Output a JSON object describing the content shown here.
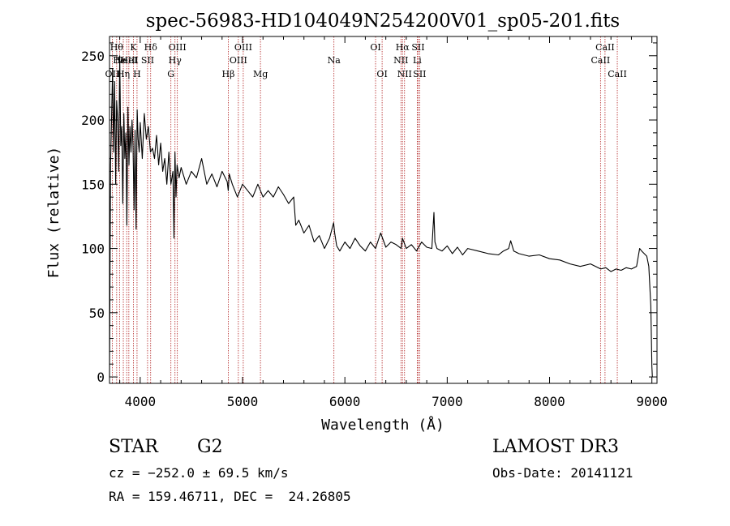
{
  "chart_data": {
    "type": "line",
    "title": "spec-56983-HD104049N254200V01_sp05-201.fits",
    "xlabel": "Wavelength (Å)",
    "ylabel": "Flux (relative)",
    "xlim": [
      3700,
      9050
    ],
    "ylim": [
      -5,
      265
    ],
    "xticks": [
      4000,
      5000,
      6000,
      7000,
      8000,
      9000
    ],
    "yticks": [
      0,
      50,
      100,
      150,
      200,
      250
    ],
    "series": [
      {
        "name": "flux",
        "x": [
          3700,
          3710,
          3720,
          3730,
          3740,
          3750,
          3760,
          3770,
          3780,
          3790,
          3800,
          3810,
          3820,
          3830,
          3840,
          3850,
          3860,
          3870,
          3880,
          3890,
          3900,
          3910,
          3920,
          3930,
          3940,
          3950,
          3960,
          3970,
          3980,
          3990,
          4000,
          4020,
          4040,
          4060,
          4080,
          4100,
          4120,
          4140,
          4160,
          4180,
          4200,
          4220,
          4240,
          4260,
          4280,
          4300,
          4320,
          4330,
          4340,
          4350,
          4360,
          4380,
          4400,
          4450,
          4500,
          4550,
          4600,
          4650,
          4700,
          4750,
          4800,
          4850,
          4860,
          4870,
          4900,
          4950,
          5000,
          5050,
          5100,
          5150,
          5200,
          5250,
          5300,
          5350,
          5400,
          5450,
          5500,
          5520,
          5550,
          5600,
          5650,
          5700,
          5750,
          5800,
          5850,
          5890,
          5900,
          5920,
          5950,
          6000,
          6050,
          6100,
          6150,
          6200,
          6250,
          6300,
          6350,
          6400,
          6450,
          6500,
          6550,
          6563,
          6600,
          6650,
          6700,
          6750,
          6800,
          6850,
          6870,
          6880,
          6900,
          6950,
          7000,
          7050,
          7100,
          7150,
          7200,
          7300,
          7400,
          7500,
          7550,
          7600,
          7620,
          7650,
          7700,
          7800,
          7900,
          8000,
          8100,
          8200,
          8300,
          8400,
          8500,
          8550,
          8600,
          8650,
          8700,
          8750,
          8800,
          8850,
          8880,
          8900,
          8950,
          8970,
          8990,
          9000,
          9005
        ],
        "values": [
          0,
          165,
          200,
          240,
          175,
          230,
          150,
          215,
          200,
          160,
          250,
          180,
          195,
          135,
          205,
          170,
          190,
          118,
          210,
          165,
          195,
          175,
          200,
          180,
          130,
          192,
          115,
          208,
          185,
          175,
          198,
          170,
          205,
          185,
          195,
          175,
          178,
          170,
          188,
          165,
          182,
          160,
          170,
          150,
          175,
          150,
          160,
          108,
          175,
          140,
          165,
          155,
          163,
          150,
          160,
          155,
          170,
          150,
          158,
          148,
          160,
          152,
          145,
          158,
          150,
          140,
          150,
          145,
          140,
          150,
          140,
          145,
          140,
          148,
          142,
          135,
          140,
          118,
          122,
          112,
          118,
          105,
          110,
          100,
          108,
          120,
          112,
          102,
          98,
          105,
          100,
          108,
          102,
          98,
          105,
          100,
          112,
          101,
          105,
          103,
          100,
          108,
          100,
          103,
          98,
          105,
          101,
          100,
          128,
          105,
          100,
          98,
          102,
          96,
          101,
          95,
          100,
          98,
          96,
          95,
          98,
          100,
          106,
          98,
          96,
          94,
          95,
          92,
          91,
          88,
          86,
          88,
          84,
          85,
          82,
          84,
          83,
          85,
          84,
          86,
          100,
          98,
          94,
          86,
          55,
          8,
          0
        ]
      }
    ],
    "lines": [
      {
        "wave": 3727,
        "row": 3,
        "label": "OII"
      },
      {
        "wave": 3770,
        "row": 1,
        "label": "Hθ"
      },
      {
        "wave": 3798,
        "row": 2,
        "label": "He"
      },
      {
        "wave": 3835,
        "row": 3,
        "label": "Hη"
      },
      {
        "wave": 3868,
        "row": 2,
        "label": "NeIII"
      },
      {
        "wave": 3889,
        "row": 2,
        "label": "HeI"
      },
      {
        "wave": 3934,
        "row": 1,
        "label": "K"
      },
      {
        "wave": 3969,
        "row": 3,
        "label": "H"
      },
      {
        "wave": 4072,
        "row": 2,
        "label": "SII"
      },
      {
        "wave": 4102,
        "row": 1,
        "label": "Hδ"
      },
      {
        "wave": 4300,
        "row": 3,
        "label": "G"
      },
      {
        "wave": 4340,
        "row": 2,
        "label": "Hγ"
      },
      {
        "wave": 4363,
        "row": 1,
        "label": "OIII"
      },
      {
        "wave": 4861,
        "row": 3,
        "label": "Hβ"
      },
      {
        "wave": 4959,
        "row": 2,
        "label": "OIII"
      },
      {
        "wave": 5007,
        "row": 1,
        "label": "OIII"
      },
      {
        "wave": 5175,
        "row": 3,
        "label": "Mg"
      },
      {
        "wave": 5893,
        "row": 2,
        "label": "Na"
      },
      {
        "wave": 6300,
        "row": 1,
        "label": "OI"
      },
      {
        "wave": 6364,
        "row": 3,
        "label": "OI"
      },
      {
        "wave": 6548,
        "row": 2,
        "label": "NII"
      },
      {
        "wave": 6563,
        "row": 1,
        "label": "Hα"
      },
      {
        "wave": 6583,
        "row": 3,
        "label": "NII"
      },
      {
        "wave": 6707,
        "row": 2,
        "label": "Li"
      },
      {
        "wave": 6716,
        "row": 1,
        "label": "SII"
      },
      {
        "wave": 6731,
        "row": 3,
        "label": "SII"
      },
      {
        "wave": 8498,
        "row": 2,
        "label": "CaII"
      },
      {
        "wave": 8542,
        "row": 1,
        "label": "CaII"
      },
      {
        "wave": 8662,
        "row": 3,
        "label": "CaII"
      }
    ]
  },
  "info": {
    "object_type": "STAR",
    "subclass": "G2",
    "survey": "LAMOST DR3",
    "cz": "cz = −252.0 ± 69.5 km/s",
    "obs_date": "Obs-Date: 20141121",
    "coords": "RA = 159.46711, DEC =  24.26805"
  },
  "colors": {
    "axis": "#000000",
    "spectrum": "#000000",
    "marker_line": "#b22222"
  }
}
